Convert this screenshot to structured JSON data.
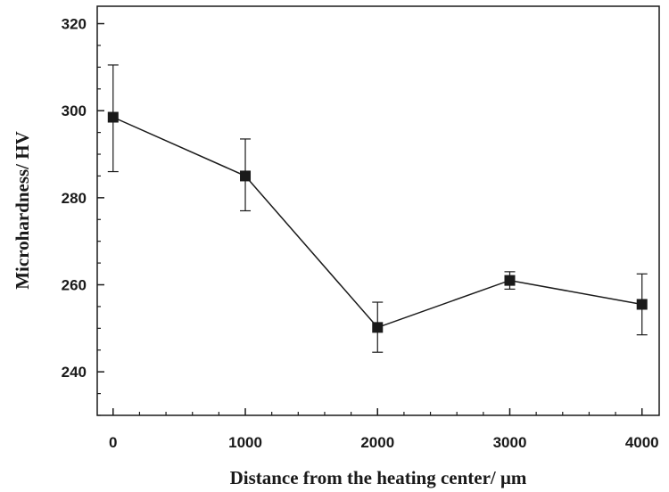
{
  "chart_data": {
    "type": "line",
    "title": "",
    "xlabel": "Distance from the heating center/ μm",
    "ylabel": "Microhardness/ HV",
    "xlim": [
      -120,
      4130
    ],
    "ylim": [
      230,
      324
    ],
    "x_ticks": [
      0,
      1000,
      2000,
      3000,
      4000
    ],
    "y_ticks": [
      240,
      260,
      280,
      300,
      320
    ],
    "x_tick_labels": [
      "0",
      "1000",
      "2000",
      "3000",
      "4000"
    ],
    "y_tick_labels": [
      "240",
      "260",
      "280",
      "300",
      "320"
    ],
    "x_minor_step": 200,
    "y_minor_step": 5,
    "grid": false,
    "legend": "none",
    "marker": "square",
    "color": "#1a1a1a",
    "series": [
      {
        "x": [
          0,
          1000,
          2000,
          3000,
          4000
        ],
        "y": [
          298.5,
          285,
          250.2,
          261,
          255.5
        ],
        "err_low": [
          286,
          277,
          244.5,
          259,
          248.5
        ],
        "err_high": [
          310.5,
          293.5,
          256,
          263,
          262.5
        ]
      }
    ]
  }
}
